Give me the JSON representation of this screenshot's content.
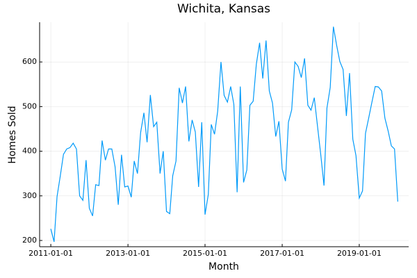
{
  "chart_data": {
    "type": "line",
    "title": "Wichita, Kansas",
    "x_label": "Month",
    "y_label": "Homes Sold",
    "x": [
      "2011-01-01",
      "2011-02-01",
      "2011-03-01",
      "2011-04-01",
      "2011-05-01",
      "2011-06-01",
      "2011-07-01",
      "2011-08-01",
      "2011-09-01",
      "2011-10-01",
      "2011-11-01",
      "2011-12-01",
      "2012-01-01",
      "2012-02-01",
      "2012-03-01",
      "2012-04-01",
      "2012-05-01",
      "2012-06-01",
      "2012-07-01",
      "2012-08-01",
      "2012-09-01",
      "2012-10-01",
      "2012-11-01",
      "2012-12-01",
      "2013-01-01",
      "2013-02-01",
      "2013-03-01",
      "2013-04-01",
      "2013-05-01",
      "2013-06-01",
      "2013-07-01",
      "2013-08-01",
      "2013-09-01",
      "2013-10-01",
      "2013-11-01",
      "2013-12-01",
      "2014-01-01",
      "2014-02-01",
      "2014-03-01",
      "2014-04-01",
      "2014-05-01",
      "2014-06-01",
      "2014-07-01",
      "2014-08-01",
      "2014-09-01",
      "2014-10-01",
      "2014-11-01",
      "2014-12-01",
      "2015-01-01",
      "2015-02-01",
      "2015-03-01",
      "2015-04-01",
      "2015-05-01",
      "2015-06-01",
      "2015-07-01",
      "2015-08-01",
      "2015-09-01",
      "2015-10-01",
      "2015-11-01",
      "2015-12-01",
      "2016-01-01",
      "2016-02-01",
      "2016-03-01",
      "2016-04-01",
      "2016-05-01",
      "2016-06-01",
      "2016-07-01",
      "2016-08-01",
      "2016-09-01",
      "2016-10-01",
      "2016-11-01",
      "2016-12-01",
      "2017-01-01",
      "2017-02-01",
      "2017-03-01",
      "2017-04-01",
      "2017-05-01",
      "2017-06-01",
      "2017-07-01",
      "2017-08-01",
      "2017-09-01",
      "2017-10-01",
      "2017-11-01",
      "2017-12-01",
      "2018-01-01",
      "2018-02-01",
      "2018-03-01",
      "2018-04-01",
      "2018-05-01",
      "2018-06-01",
      "2018-07-01",
      "2018-08-01",
      "2018-09-01",
      "2018-10-01",
      "2018-11-01",
      "2018-12-01",
      "2019-01-01",
      "2019-02-01",
      "2019-03-01",
      "2019-04-01",
      "2019-05-01",
      "2019-06-01",
      "2019-07-01",
      "2019-08-01",
      "2019-09-01",
      "2019-10-01",
      "2019-11-01",
      "2019-12-01",
      "2020-01-01"
    ],
    "series": [
      {
        "name": "Homes Sold",
        "color": "#009af9",
        "values": [
          226,
          197,
          298,
          345,
          393,
          405,
          408,
          418,
          405,
          300,
          290,
          380,
          272,
          255,
          325,
          323,
          424,
          380,
          405,
          405,
          365,
          280,
          392,
          320,
          322,
          297,
          378,
          350,
          442,
          486,
          420,
          526,
          455,
          465,
          350,
          400,
          265,
          260,
          345,
          378,
          542,
          508,
          545,
          422,
          470,
          443,
          320,
          465,
          258,
          303,
          460,
          438,
          490,
          600,
          525,
          510,
          545,
          505,
          308,
          545,
          330,
          358,
          503,
          512,
          595,
          643,
          563,
          648,
          535,
          508,
          433,
          467,
          360,
          333,
          465,
          493,
          600,
          590,
          565,
          608,
          503,
          492,
          520,
          457,
          393,
          323,
          497,
          543,
          679,
          637,
          601,
          583,
          479,
          575,
          427,
          390,
          295,
          311,
          440,
          475,
          510,
          545,
          544,
          535,
          474,
          446,
          412,
          405,
          287
        ]
      }
    ],
    "xlim": [
      "2010-09-17",
      "2020-04-13"
    ],
    "xticks": [
      "2011-01-01",
      "2013-01-01",
      "2015-01-01",
      "2017-01-01",
      "2019-01-01"
    ],
    "ylim": [
      186,
      689
    ],
    "yticks": [
      200,
      300,
      400,
      500,
      600
    ],
    "grid": true
  }
}
